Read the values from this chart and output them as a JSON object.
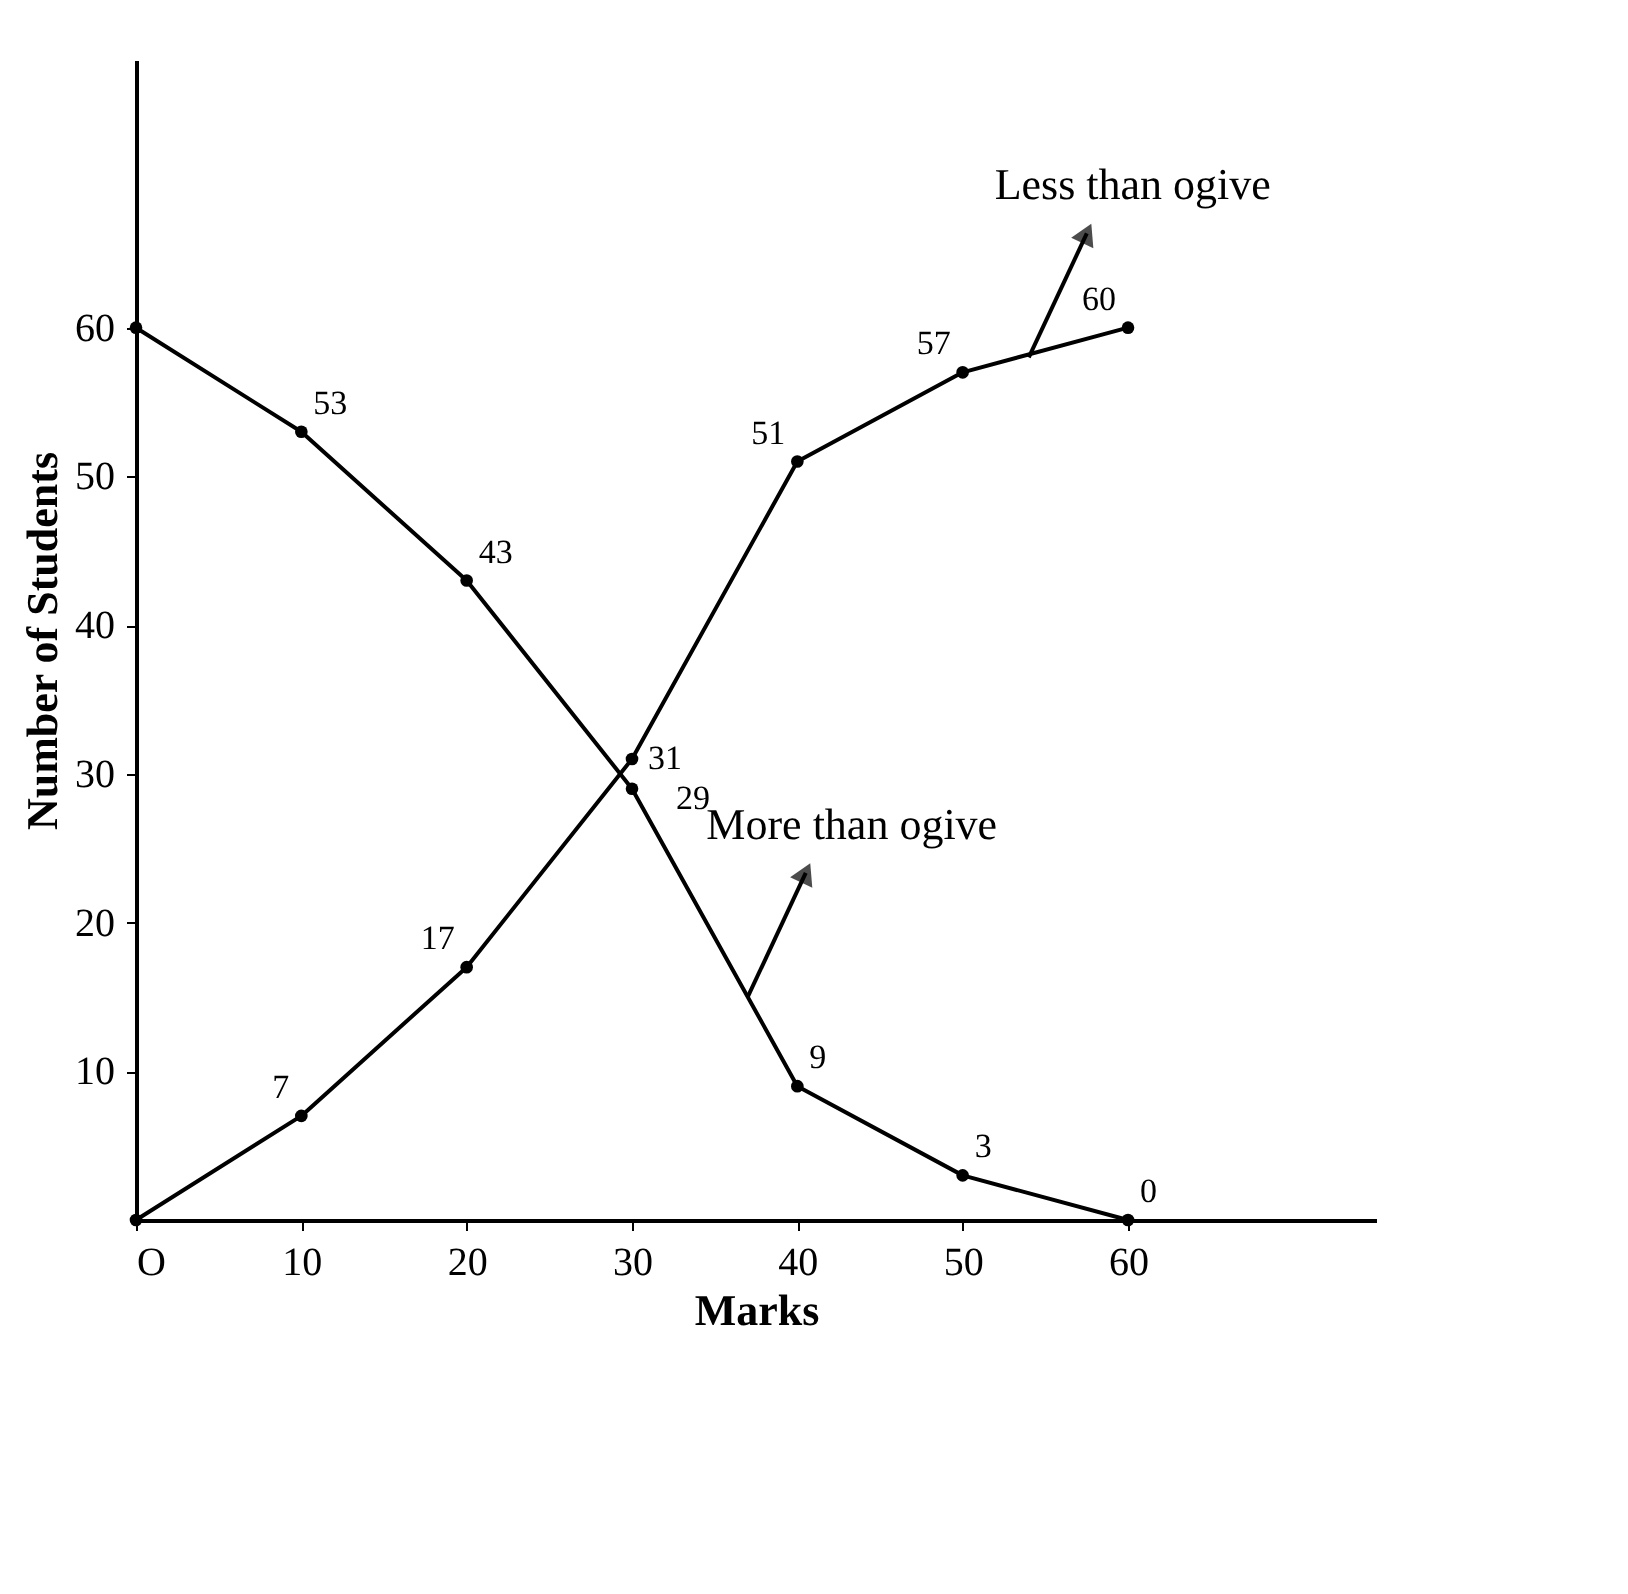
{
  "chart_data": {
    "type": "line",
    "xlabel": "Marks",
    "ylabel": "Number of Students",
    "x": [
      0,
      10,
      20,
      30,
      40,
      50,
      60
    ],
    "series": [
      {
        "color": "#000000",
        "values": [
          0,
          7,
          17,
          31,
          51,
          57,
          60
        ],
        "value_labels": [
          null,
          "7",
          "17",
          "31",
          "51",
          "57",
          "60"
        ]
      },
      {
        "color": "#000000",
        "values": [
          60,
          53,
          43,
          29,
          9,
          3,
          0
        ],
        "value_labels": [
          null,
          "53",
          "43",
          "29",
          "9",
          "3",
          "0"
        ]
      }
    ],
    "annotations": [
      {
        "text": "Less than ogive",
        "x": 54,
        "y": 58
      },
      {
        "text": "More than ogive",
        "x": 37,
        "y": 15
      }
    ],
    "xlim": [
      0,
      75
    ],
    "ylim": [
      0,
      78
    ],
    "xticks": [
      {
        "value": 0,
        "label": "O"
      },
      10,
      20,
      30,
      40,
      50,
      60
    ],
    "yticks": [
      10,
      20,
      30,
      40,
      50,
      60
    ],
    "grid": false,
    "marker": "circle",
    "line_style": "solid"
  }
}
